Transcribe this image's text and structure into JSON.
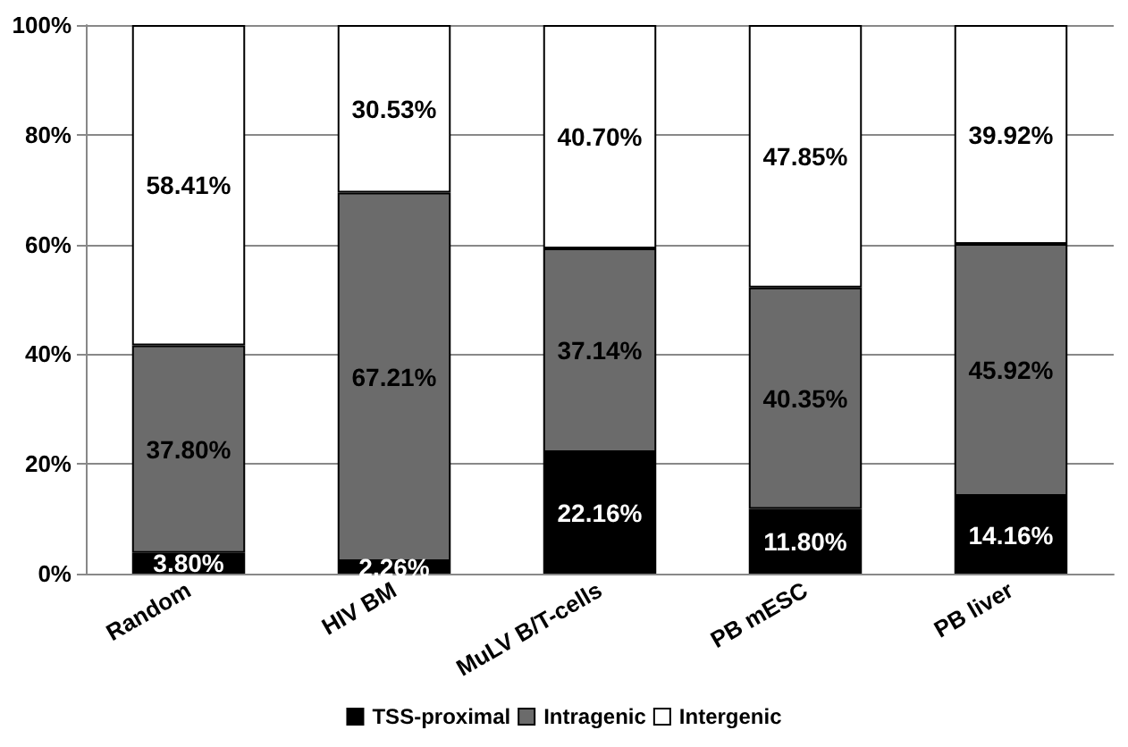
{
  "chart_data": {
    "type": "bar",
    "stacked": true,
    "categories": [
      "Random",
      "HIV BM",
      "MuLV B/T-cells",
      "PB mESC",
      "PB liver"
    ],
    "series": [
      {
        "name": "TSS-proximal",
        "color": "#000000",
        "values": [
          3.8,
          2.26,
          22.16,
          11.8,
          14.16
        ],
        "value_labels": [
          "3.80%",
          "2.26%",
          "22.16%",
          "11.80%",
          "14.16%"
        ]
      },
      {
        "name": "Intragenic",
        "color": "#6b6b6b",
        "values": [
          37.8,
          67.21,
          37.14,
          40.35,
          45.92
        ],
        "value_labels": [
          "37.80%",
          "67.21%",
          "37.14%",
          "40.35%",
          "45.92%"
        ]
      },
      {
        "name": "Intergenic",
        "color": "#ffffff",
        "values": [
          58.41,
          30.53,
          40.7,
          47.85,
          39.92
        ],
        "value_labels": [
          "58.41%",
          "30.53%",
          "40.70%",
          "47.85%",
          "39.92%"
        ]
      }
    ],
    "ylim": [
      0,
      100
    ],
    "yticks": [
      {
        "value": 0,
        "label": "0%"
      },
      {
        "value": 20,
        "label": "20%"
      },
      {
        "value": 40,
        "label": "40%"
      },
      {
        "value": 60,
        "label": "60%"
      },
      {
        "value": 80,
        "label": "80%"
      },
      {
        "value": 100,
        "label": "100%"
      }
    ],
    "grid": "y",
    "legend": "bottom"
  }
}
